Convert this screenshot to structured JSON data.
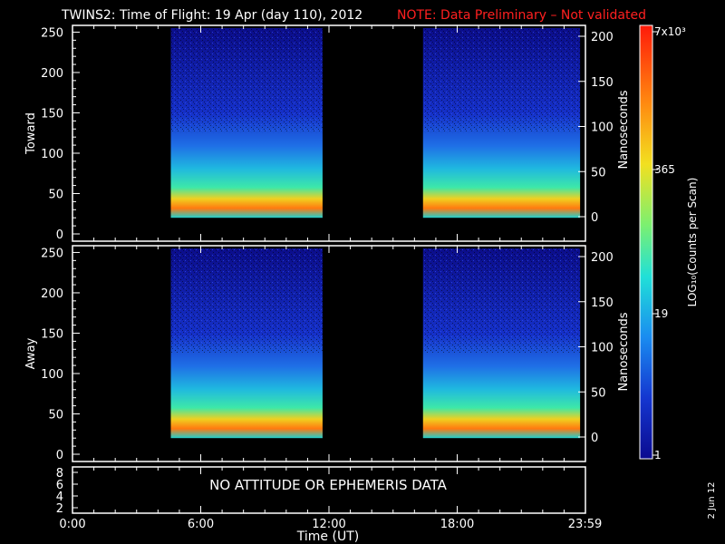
{
  "title": "TWINS2: Time of Flight: 19 Apr (day 110), 2012",
  "note": "NOTE: Data Preliminary – Not validated",
  "colors": {
    "note": "#ff2020",
    "frame": "#ffffff",
    "background": "#000000"
  },
  "colorbar": {
    "label": "LOG₁₀(Counts per Scan)",
    "ticks": [
      "7x10³",
      "365",
      "19",
      "1"
    ]
  },
  "side_date": "2 Jun 12",
  "chart_data": [
    {
      "type": "heatmap",
      "panel": "Toward",
      "ylabel": "Toward",
      "ylim": [
        0,
        255
      ],
      "yticks": [
        "0",
        "50",
        "100",
        "150",
        "200",
        "250"
      ],
      "y2label": "Nanoseconds",
      "y2ticks": [
        "0",
        "50",
        "100",
        "150",
        "200"
      ],
      "data_intervals_hours": [
        [
          4.6,
          11.7
        ],
        [
          16.4,
          23.75
        ]
      ],
      "x_range_hours": [
        0,
        24
      ]
    },
    {
      "type": "heatmap",
      "panel": "Away",
      "ylabel": "Away",
      "ylim": [
        0,
        255
      ],
      "yticks": [
        "0",
        "50",
        "100",
        "150",
        "200",
        "250"
      ],
      "y2label": "Nanoseconds",
      "y2ticks": [
        "0",
        "50",
        "100",
        "150",
        "200"
      ],
      "data_intervals_hours": [
        [
          4.6,
          11.7
        ],
        [
          16.4,
          23.75
        ]
      ],
      "x_range_hours": [
        0,
        24
      ]
    },
    {
      "type": "line",
      "panel": "ephemeris",
      "yticks": [
        "2",
        "4",
        "6",
        "8"
      ],
      "message": "NO ATTITUDE OR EPHEMERIS DATA"
    }
  ],
  "xaxis": {
    "label": "Time (UT)",
    "ticks": [
      {
        "label": "0:00",
        "hour": 0
      },
      {
        "label": "6:00",
        "hour": 6
      },
      {
        "label": "12:00",
        "hour": 12
      },
      {
        "label": "18:00",
        "hour": 18
      },
      {
        "label": "23:59",
        "hour": 23.98
      }
    ]
  }
}
